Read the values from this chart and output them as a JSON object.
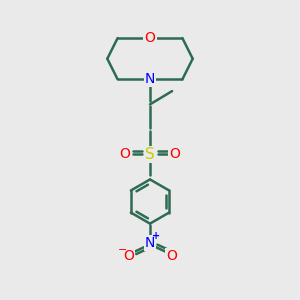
{
  "background_color": "#eaeaea",
  "line_color": "#2d6b52",
  "line_width": 1.8,
  "atom_colors": {
    "O": "#ff0000",
    "N": "#0000ff",
    "S": "#cccc00"
  },
  "font_size": 10,
  "fig_width": 3.0,
  "fig_height": 3.0
}
